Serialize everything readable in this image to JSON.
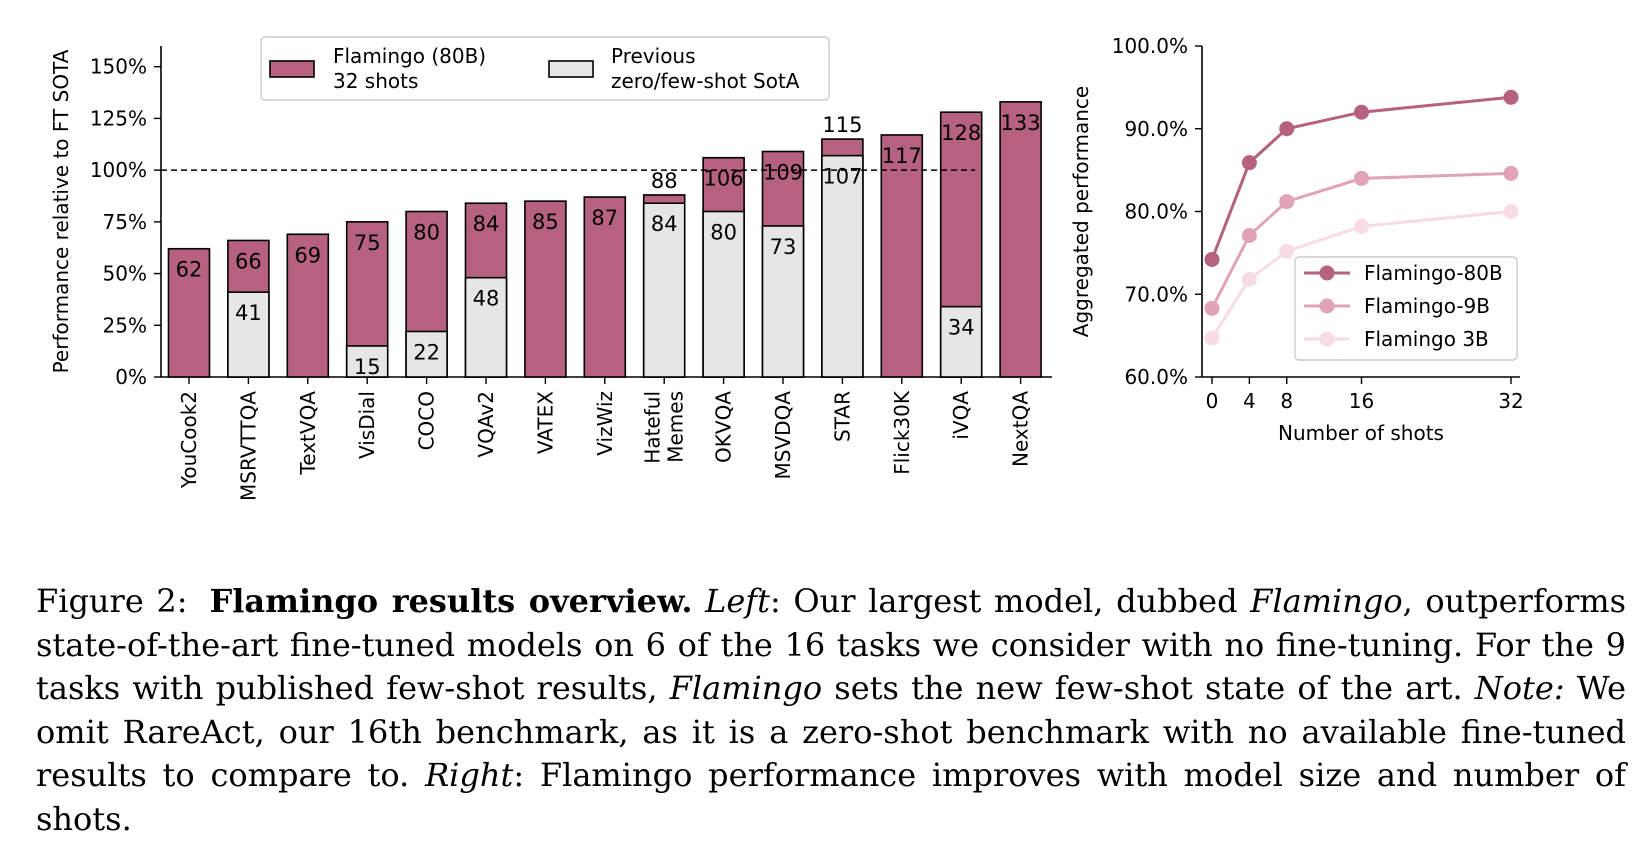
{
  "chart_data": [
    {
      "type": "bar",
      "ylabel": "Performance relative to FT SOTA",
      "ylim": [
        0,
        160
      ],
      "yticks": [
        "0%",
        "25%",
        "50%",
        "75%",
        "100%",
        "125%",
        "150%"
      ],
      "reference_line": 100,
      "legend": {
        "placement": "top",
        "entries": [
          {
            "lines": [
              "Flamingo (80B)",
              "32 shots"
            ],
            "color": "#b5617f"
          },
          {
            "lines": [
              "Previous",
              "zero/few-shot SotA"
            ],
            "color": "#e6e6e6"
          }
        ]
      },
      "categories": [
        {
          "lines": [
            "YouCook2"
          ],
          "flamingo": 62,
          "previous": null
        },
        {
          "lines": [
            "MSRVTTQA"
          ],
          "flamingo": 66,
          "previous": 41
        },
        {
          "lines": [
            "TextVQA"
          ],
          "flamingo": 69,
          "previous": null
        },
        {
          "lines": [
            "VisDial"
          ],
          "flamingo": 75,
          "previous": 15
        },
        {
          "lines": [
            "COCO"
          ],
          "flamingo": 80,
          "previous": 22
        },
        {
          "lines": [
            "VQAv2"
          ],
          "flamingo": 84,
          "previous": 48
        },
        {
          "lines": [
            "VATEX"
          ],
          "flamingo": 85,
          "previous": null
        },
        {
          "lines": [
            "VizWiz"
          ],
          "flamingo": 87,
          "previous": null
        },
        {
          "lines": [
            "Hateful",
            "Memes"
          ],
          "flamingo": 88,
          "previous": 84
        },
        {
          "lines": [
            "OKVQA"
          ],
          "flamingo": 106,
          "previous": 80
        },
        {
          "lines": [
            "MSVDQA"
          ],
          "flamingo": 109,
          "previous": 73
        },
        {
          "lines": [
            "STAR"
          ],
          "flamingo": 115,
          "previous": 107
        },
        {
          "lines": [
            "Flick30K"
          ],
          "flamingo": 117,
          "previous": null
        },
        {
          "lines": [
            "iVQA"
          ],
          "flamingo": 128,
          "previous": 34
        },
        {
          "lines": [
            "NextQA"
          ],
          "flamingo": 133,
          "previous": null
        }
      ]
    },
    {
      "type": "line",
      "xlabel": "Number of shots",
      "ylabel": "Aggregated performance",
      "x": [
        0,
        4,
        8,
        16,
        32
      ],
      "ylim": [
        60,
        100
      ],
      "yticks": [
        "60.0%",
        "70.0%",
        "80.0%",
        "90.0%",
        "100.0%"
      ],
      "legend": {
        "placement": "lower-right"
      },
      "series": [
        {
          "name": "Flamingo-80B",
          "color": "#b5617f",
          "values": [
            74.2,
            85.9,
            90.0,
            92.0,
            93.8
          ]
        },
        {
          "name": "Flamingo-9B",
          "color": "#e0a3b7",
          "values": [
            68.3,
            77.1,
            81.2,
            84.0,
            84.6
          ]
        },
        {
          "name": "Flamingo 3B",
          "color": "#f7dde3",
          "values": [
            64.7,
            71.8,
            75.2,
            78.2,
            80.0
          ]
        }
      ]
    }
  ],
  "caption": {
    "label": "Figure 2:",
    "title": "Flamingo results overview.",
    "left_label": "Left",
    "part1": ": Our largest model, dubbed ",
    "model_name": "Flamingo",
    "part2": ", outperforms state-of-the-art fine-tuned models on 6 of the 16 tasks we consider with no fine-tuning. For the 9 tasks with published few-shot results, ",
    "model_name_2": "Flamingo",
    "part3": " sets the new few-shot state of the art. ",
    "note_label": "Note:",
    "part4": " We omit RareAct, our 16th benchmark, as it is a zero-shot benchmark with no available fine-tuned results to compare to. ",
    "right_label": "Right",
    "part5": ": Flamingo performance improves with model size and number of shots."
  }
}
